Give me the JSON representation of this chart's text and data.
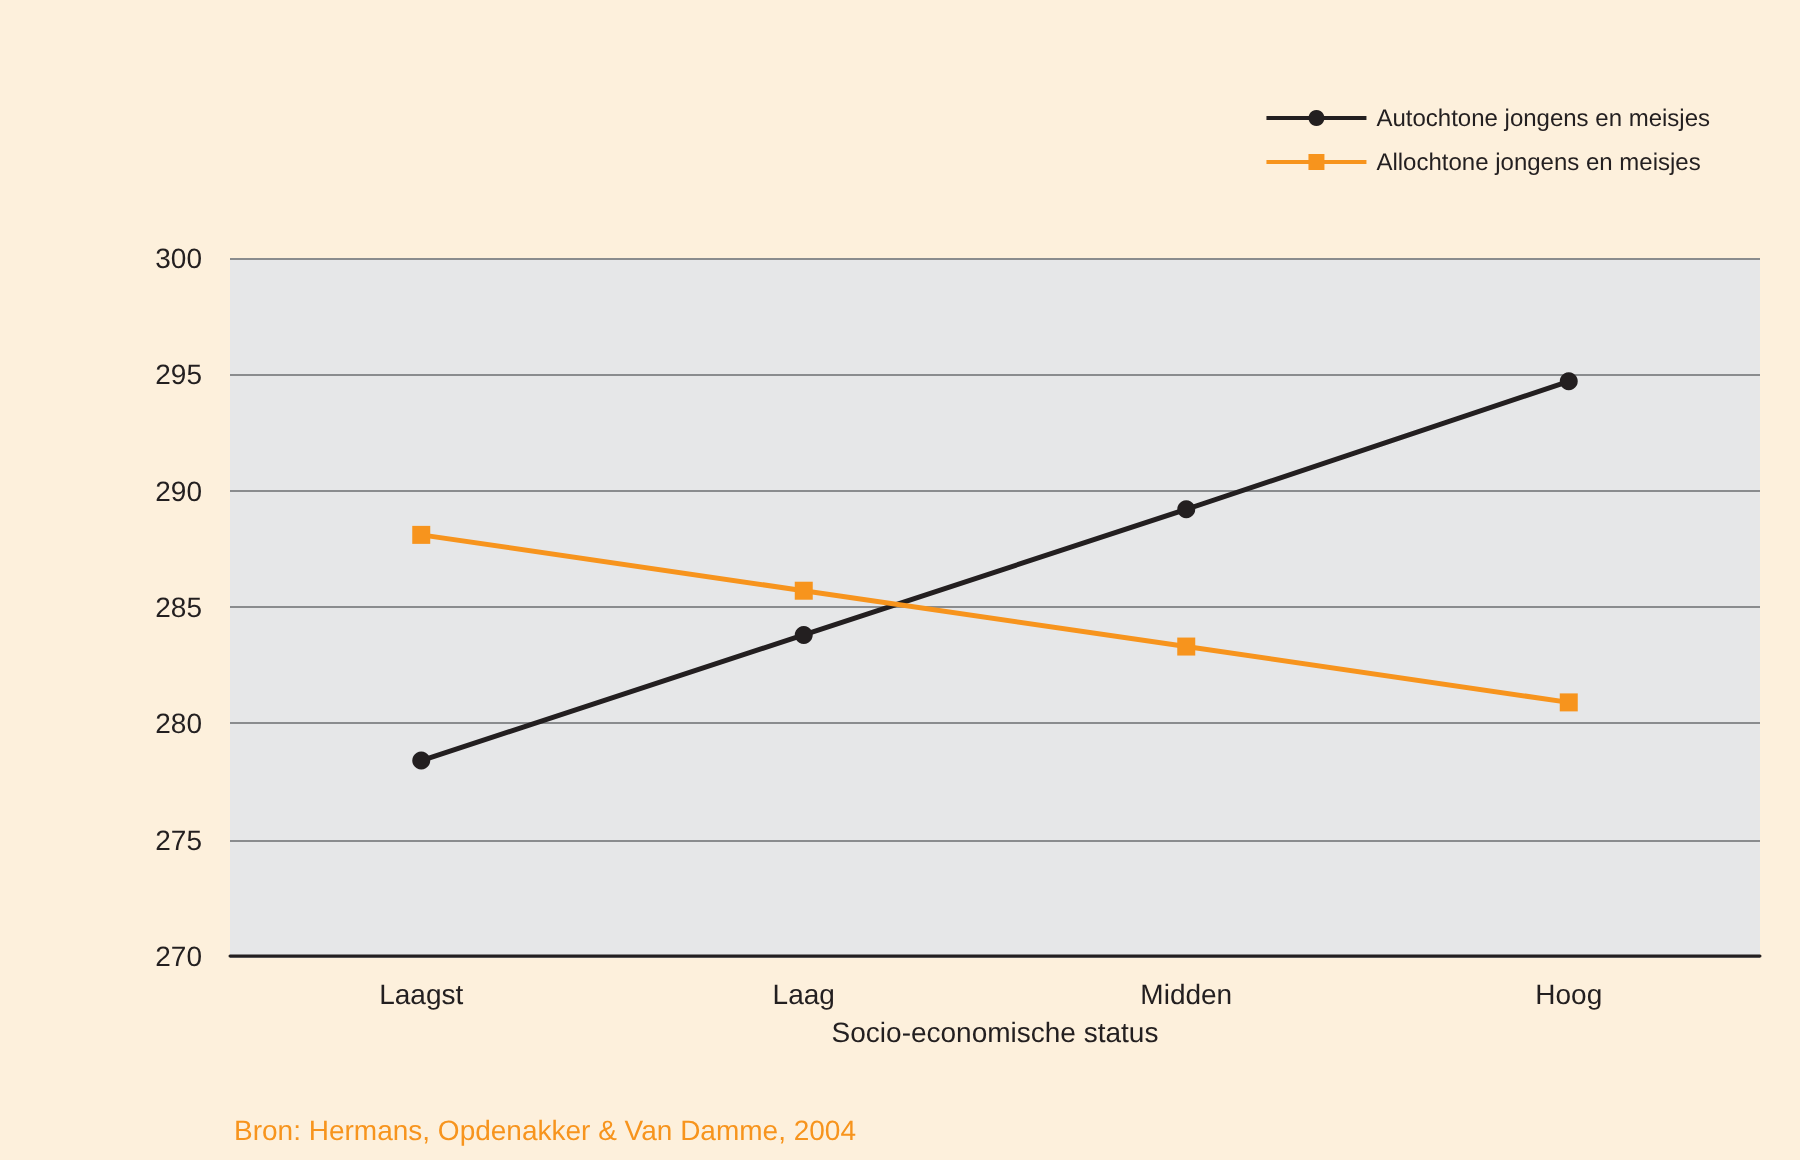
{
  "chart_data": {
    "type": "line",
    "xlabel": "Socio-economische status",
    "categories": [
      "Laagst",
      "Laag",
      "Midden",
      "Hoog"
    ],
    "series": [
      {
        "name": "Autochtone jongens en meisjes",
        "color": "#231f20",
        "marker": "circle",
        "values": [
          278.4,
          283.8,
          289.2,
          294.7
        ]
      },
      {
        "name": "Allochtone jongens en meisjes",
        "color": "#f7941d",
        "marker": "square",
        "values": [
          288.1,
          285.7,
          283.3,
          280.9
        ]
      }
    ],
    "ylim": [
      270,
      300
    ],
    "yticks": [
      270,
      275,
      280,
      285,
      290,
      295,
      300
    ],
    "grid": "y",
    "legend": "top right",
    "line_style": "solid",
    "annotations": [
      "Bron: Hermans, Opdenakker & Van Damme, 2004"
    ]
  }
}
